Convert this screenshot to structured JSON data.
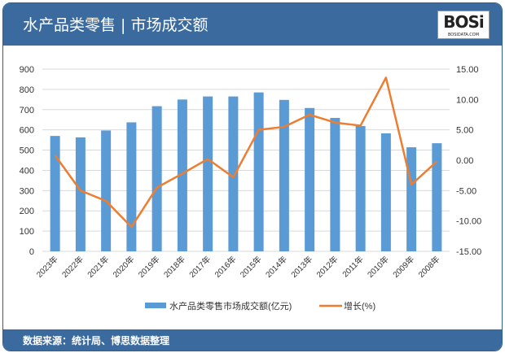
{
  "header": {
    "title": "水产品类零售 | 市场成交额",
    "logo": "BOSi",
    "logo_sub": "BOSIDATA.COM"
  },
  "footer": {
    "source": "数据来源：统计局、博思数据整理"
  },
  "colors": {
    "bar": "#5b9bd5",
    "line": "#ed7d31",
    "header": "#3a6a9e"
  },
  "chart_data": {
    "type": "bar+line",
    "title": "",
    "categories": [
      "2023年",
      "2022年",
      "2021年",
      "2020年",
      "2019年",
      "2018年",
      "2017年",
      "2016年",
      "2015年",
      "2014年",
      "2013年",
      "2012年",
      "2011年",
      "2010年",
      "2009年",
      "2008年"
    ],
    "series": [
      {
        "name": "水产品类零售市场成交额(亿元)",
        "type": "bar",
        "axis": "left",
        "values": [
          570,
          563,
          597,
          637,
          717,
          750,
          765,
          765,
          785,
          748,
          708,
          659,
          619,
          583,
          514,
          534
        ]
      },
      {
        "name": "增长(%)",
        "type": "line",
        "axis": "right",
        "values": [
          0.8,
          -5.0,
          -6.7,
          -11.0,
          -4.5,
          -2.2,
          0.2,
          -2.8,
          5.0,
          5.5,
          7.5,
          6.2,
          5.7,
          13.6,
          -4.0,
          -0.2
        ]
      }
    ],
    "left_axis": {
      "ylim": [
        0,
        900
      ],
      "ticks": [
        "0",
        "100",
        "200",
        "300",
        "400",
        "500",
        "600",
        "700",
        "800",
        "900"
      ]
    },
    "right_axis": {
      "ylim": [
        -15,
        15
      ],
      "ticks": [
        "-15.00",
        "-10.00",
        "-5.00",
        "0.00",
        "5.00",
        "10.00",
        "15.00"
      ]
    },
    "grid": true,
    "legend": "bottom"
  }
}
